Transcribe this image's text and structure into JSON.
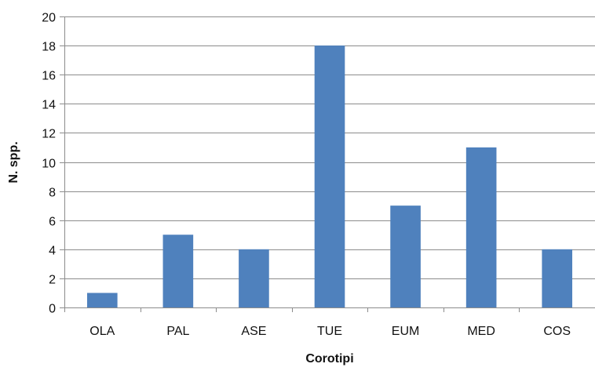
{
  "chart_data": {
    "type": "bar",
    "title": "",
    "xlabel": "Corotipi",
    "ylabel": "N. spp.",
    "categories": [
      "OLA",
      "PAL",
      "ASE",
      "TUE",
      "EUM",
      "MED",
      "COS"
    ],
    "values": [
      1,
      5,
      4,
      18,
      7,
      11,
      4
    ],
    "ylim": [
      0,
      20
    ],
    "yticks": [
      0,
      2,
      4,
      6,
      8,
      10,
      12,
      14,
      16,
      18,
      20
    ],
    "grid": true,
    "legend": "none",
    "bar_color": "#4F81BD",
    "gridline_color": "#8C8C8C",
    "axis_color": "#8C8C8C"
  }
}
